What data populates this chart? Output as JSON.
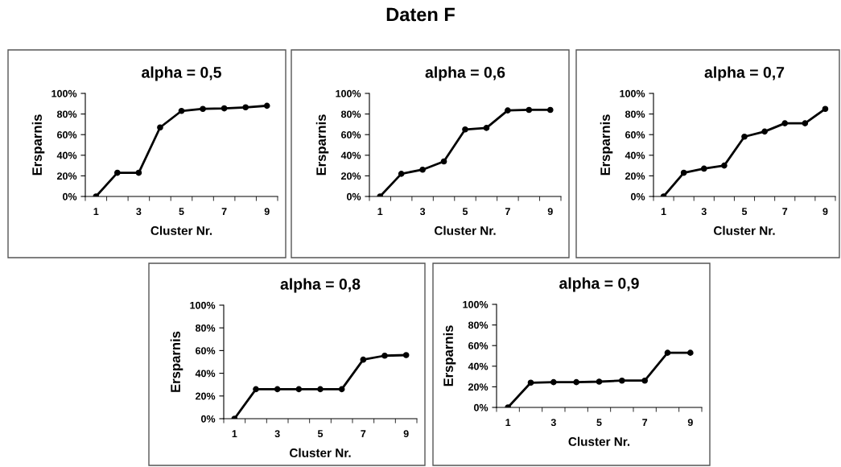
{
  "chart_data": [
    {
      "type": "line",
      "title": "alpha = 0,5",
      "xlabel": "Cluster Nr.",
      "ylabel": "Ersparnis",
      "annotations": [
        "Daten F"
      ],
      "categories": [
        "1",
        null,
        "3",
        null,
        "5",
        null,
        "7",
        null,
        "9"
      ],
      "series": [
        {
          "color": "#000000",
          "values": [
            0,
            23,
            23,
            67,
            83,
            85,
            85.5,
            86.5,
            88
          ]
        }
      ],
      "ylim": [
        0,
        100
      ],
      "yticks": [
        {
          "value": 0,
          "label": "0%"
        },
        {
          "value": 20,
          "label": "20%"
        },
        {
          "value": 40,
          "label": "40%"
        },
        {
          "value": 60,
          "label": "60%"
        },
        {
          "value": 80,
          "label": "80%"
        },
        {
          "value": 100,
          "label": "100%"
        }
      ],
      "marker": "circle",
      "line_style": "solid",
      "grid": false
    },
    {
      "type": "line",
      "title": "alpha = 0,6",
      "xlabel": "Cluster Nr.",
      "ylabel": "Ersparnis",
      "categories": [
        "1",
        null,
        "3",
        null,
        "5",
        null,
        "7",
        null,
        "9"
      ],
      "series": [
        {
          "color": "#000000",
          "values": [
            0,
            22,
            26,
            34,
            65,
            66.5,
            83.5,
            84,
            84
          ]
        }
      ],
      "ylim": [
        0,
        100
      ],
      "yticks": [
        {
          "value": 0,
          "label": "0%"
        },
        {
          "value": 20,
          "label": "20%"
        },
        {
          "value": 40,
          "label": "40%"
        },
        {
          "value": 60,
          "label": "60%"
        },
        {
          "value": 80,
          "label": "80%"
        },
        {
          "value": 100,
          "label": "100%"
        }
      ],
      "marker": "circle",
      "line_style": "solid",
      "grid": false
    },
    {
      "type": "line",
      "title": "alpha = 0,7",
      "xlabel": "Cluster Nr.",
      "ylabel": "Ersparnis",
      "categories": [
        "1",
        null,
        "3",
        null,
        "5",
        null,
        "7",
        null,
        "9"
      ],
      "series": [
        {
          "color": "#000000",
          "values": [
            0,
            23,
            27,
            30,
            58,
            63,
            71,
            71,
            85
          ]
        }
      ],
      "ylim": [
        0,
        100
      ],
      "yticks": [
        {
          "value": 0,
          "label": "0%"
        },
        {
          "value": 20,
          "label": "20%"
        },
        {
          "value": 40,
          "label": "40%"
        },
        {
          "value": 60,
          "label": "60%"
        },
        {
          "value": 80,
          "label": "80%"
        },
        {
          "value": 100,
          "label": "100%"
        }
      ],
      "marker": "circle",
      "line_style": "solid",
      "grid": false
    },
    {
      "type": "line",
      "title": "alpha = 0,8",
      "xlabel": "Cluster Nr.",
      "ylabel": "Ersparnis",
      "categories": [
        "1",
        null,
        "3",
        null,
        "5",
        null,
        "7",
        null,
        "9"
      ],
      "series": [
        {
          "color": "#000000",
          "values": [
            0,
            26,
            26,
            26,
            26,
            26,
            52,
            55.5,
            56
          ]
        }
      ],
      "ylim": [
        0,
        100
      ],
      "yticks": [
        {
          "value": 0,
          "label": "0%"
        },
        {
          "value": 20,
          "label": "20%"
        },
        {
          "value": 40,
          "label": "40%"
        },
        {
          "value": 60,
          "label": "60%"
        },
        {
          "value": 80,
          "label": "80%"
        },
        {
          "value": 100,
          "label": "100%"
        }
      ],
      "marker": "circle",
      "line_style": "solid",
      "grid": false
    },
    {
      "type": "line",
      "title": "alpha = 0,9",
      "xlabel": "Cluster Nr.",
      "ylabel": "Ersparnis",
      "categories": [
        "1",
        null,
        "3",
        null,
        "5",
        null,
        "7",
        null,
        "9"
      ],
      "series": [
        {
          "color": "#000000",
          "values": [
            0,
            24,
            24.5,
            24.5,
            25,
            26,
            26,
            53,
            53
          ]
        }
      ],
      "ylim": [
        0,
        100
      ],
      "yticks": [
        {
          "value": 0,
          "label": "0%"
        },
        {
          "value": 20,
          "label": "20%"
        },
        {
          "value": 40,
          "label": "40%"
        },
        {
          "value": 60,
          "label": "60%"
        },
        {
          "value": 80,
          "label": "80%"
        },
        {
          "value": 100,
          "label": "100%"
        }
      ],
      "marker": "circle",
      "line_style": "solid",
      "grid": false
    }
  ]
}
